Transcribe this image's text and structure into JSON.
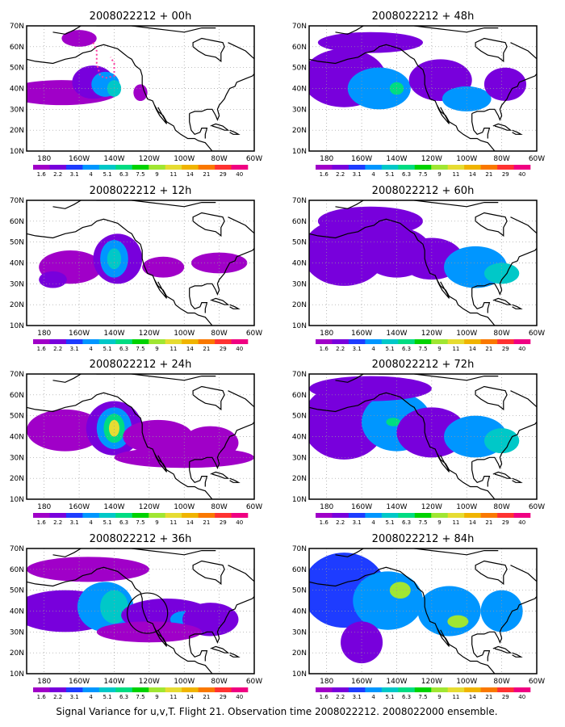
{
  "figure": {
    "caption": "Signal Variance for u,v,T. Flight 21. Observation time 2008022212. 2008022000 ensemble."
  },
  "colorbar": {
    "labels": [
      "1.6",
      "2.2",
      "3.1",
      "4",
      "5.1",
      "6.3",
      "7.5",
      "9",
      "11",
      "14",
      "21",
      "29",
      "40"
    ],
    "colors": [
      "#a000c8",
      "#7800dc",
      "#1e3cff",
      "#0096ff",
      "#00c8c8",
      "#00dc82",
      "#00d200",
      "#a0e632",
      "#e6dc32",
      "#f0b400",
      "#fa7800",
      "#ff3232",
      "#f00082"
    ]
  },
  "axes": {
    "lon_labels": [
      "180",
      "160W",
      "140W",
      "120W",
      "100W",
      "80W",
      "60W"
    ],
    "lat_labels": [
      "70N",
      "60N",
      "50N",
      "40N",
      "30N",
      "20N",
      "10N"
    ]
  },
  "panels": [
    {
      "title": "2008022212 + 00h",
      "lead_hours": 0
    },
    {
      "title": "2008022212 + 12h",
      "lead_hours": 12
    },
    {
      "title": "2008022212 + 24h",
      "lead_hours": 24
    },
    {
      "title": "2008022212 + 36h",
      "lead_hours": 36
    },
    {
      "title": "2008022212 + 48h",
      "lead_hours": 48
    },
    {
      "title": "2008022212 + 60h",
      "lead_hours": 60
    },
    {
      "title": "2008022212 + 72h",
      "lead_hours": 72
    },
    {
      "title": "2008022212 + 84h",
      "lead_hours": 84
    }
  ]
}
